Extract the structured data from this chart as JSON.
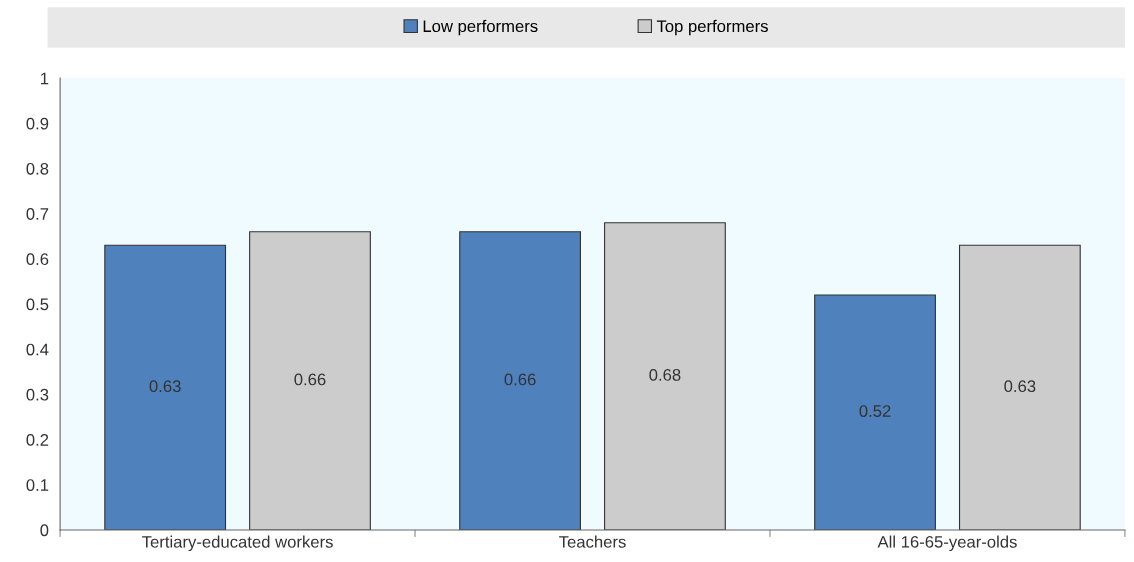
{
  "chart_data": {
    "type": "bar",
    "categories": [
      "Tertiary-educated workers",
      "Teachers",
      "All 16-65-year-olds"
    ],
    "series": [
      {
        "name": "Low performers",
        "color": "#4f81bd",
        "values": [
          0.63,
          0.66,
          0.52
        ]
      },
      {
        "name": "Top performers",
        "color": "#cccccc",
        "values": [
          0.66,
          0.68,
          0.63
        ]
      }
    ],
    "ylim": [
      0,
      1
    ],
    "yticks": [
      0,
      0.1,
      0.2,
      0.3,
      0.4,
      0.5,
      0.6,
      0.7,
      0.8,
      0.9,
      1
    ],
    "data_labels": true,
    "grid": false,
    "legend": "top"
  }
}
